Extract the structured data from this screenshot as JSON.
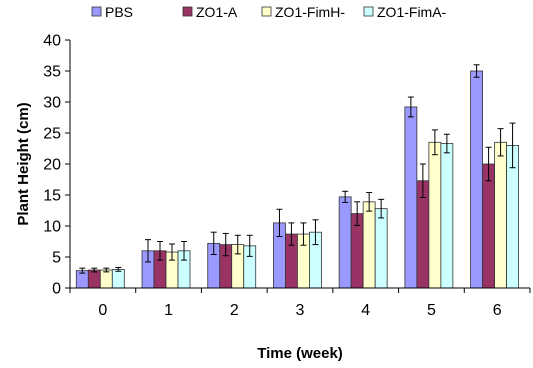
{
  "chart_data": {
    "type": "bar",
    "title": "",
    "xlabel": "Time (week)",
    "ylabel": "Plant Height (cm)",
    "ylim": [
      0,
      40
    ],
    "yticks": [
      0,
      5,
      10,
      15,
      20,
      25,
      30,
      35,
      40
    ],
    "categories": [
      "0",
      "1",
      "2",
      "3",
      "4",
      "5",
      "6"
    ],
    "legend_position": "top",
    "grid": false,
    "series": [
      {
        "name": "PBS",
        "color": "#9999ff",
        "values": [
          2.8,
          6.0,
          7.2,
          10.5,
          14.7,
          29.2,
          35.0
        ],
        "errors": [
          0.4,
          1.8,
          1.8,
          2.2,
          0.9,
          1.6,
          1.0
        ]
      },
      {
        "name": "ZO1-A",
        "color": "#993366",
        "values": [
          2.9,
          6.0,
          7.0,
          8.7,
          12.0,
          17.3,
          20.0
        ],
        "errors": [
          0.3,
          1.5,
          1.8,
          1.8,
          1.9,
          2.7,
          2.7
        ]
      },
      {
        "name": "ZO1-FimH-",
        "color": "#ffffcc",
        "values": [
          2.9,
          5.8,
          7.0,
          8.7,
          13.9,
          23.5,
          23.5
        ],
        "errors": [
          0.3,
          1.3,
          1.5,
          1.8,
          1.5,
          2.0,
          2.2
        ]
      },
      {
        "name": "ZO1-FimA-",
        "color": "#ccffff",
        "values": [
          3.0,
          6.0,
          6.8,
          9.0,
          12.8,
          23.3,
          23.0
        ],
        "errors": [
          0.3,
          1.5,
          1.7,
          2.0,
          1.5,
          1.5,
          3.6
        ]
      }
    ]
  }
}
